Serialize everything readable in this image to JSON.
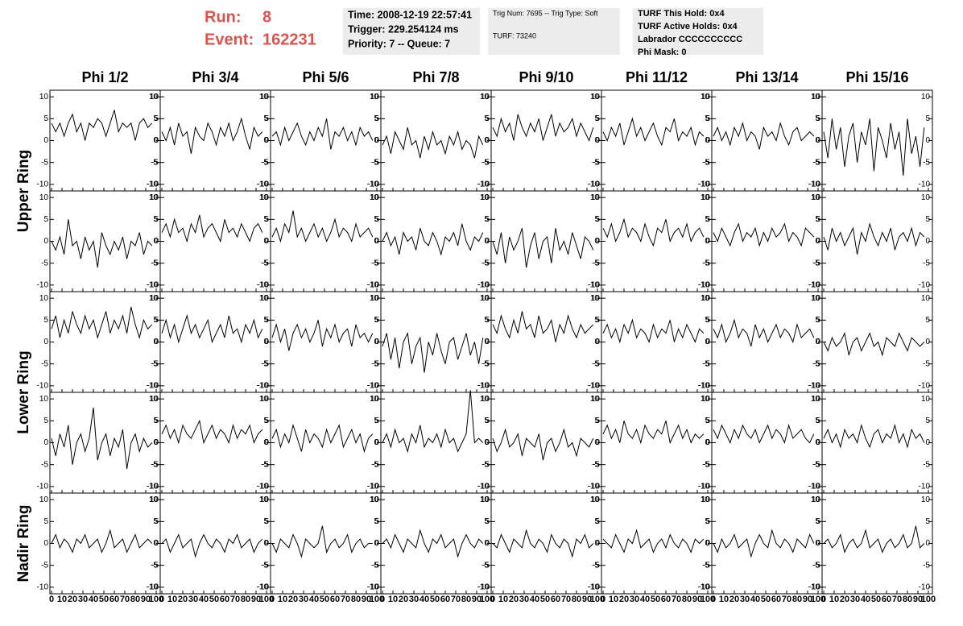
{
  "header": {
    "run": {
      "label": "Run:",
      "value": 8
    },
    "event": {
      "label": "Event:",
      "value": 162231
    },
    "box1": [
      "Time: 2008-12-19 22:57:41",
      "Trigger: 229.254124 ms",
      "Priority: 7 -- Queue: 7"
    ],
    "box2": [
      "Trig Num: 7695 -- Trig Type: Soft",
      "TURF: 73240"
    ],
    "box3": [
      "TURF This Hold: 0x4",
      "TURF Active Holds: 0x4",
      "Labrador CCCCCCCCCC",
      "Phi Mask: 0"
    ]
  },
  "chart_data": {
    "type": "line",
    "color": "#000000",
    "columns": [
      "Phi 1/2",
      "Phi 3/4",
      "Phi 5/6",
      "Phi 7/8",
      "Phi 9/10",
      "Phi 11/12",
      "Phi 13/14",
      "Phi 15/16"
    ],
    "rows": [
      "Upper Ring",
      "Lower Ring",
      "Nadir Ring"
    ],
    "x": [
      0,
      4,
      8,
      12,
      16,
      20,
      24,
      28,
      32,
      36,
      40,
      44,
      48,
      52,
      56,
      60,
      64,
      68,
      72,
      76,
      80,
      84,
      88,
      92,
      96
    ],
    "xlim": [
      0,
      100
    ],
    "xticks": [
      0,
      10,
      20,
      30,
      40,
      50,
      60,
      70,
      80,
      90,
      100
    ],
    "ylim": [
      -11.5,
      11.5
    ],
    "yticks": [
      -10,
      -5,
      0,
      5,
      10
    ],
    "panels": [
      [
        4,
        2,
        4,
        1,
        4,
        6,
        2,
        4,
        0,
        4,
        3,
        5,
        4,
        1,
        4,
        7,
        2,
        4,
        3,
        4,
        0,
        4,
        5,
        3,
        4
      ],
      [
        2,
        0,
        3,
        -1,
        4,
        1,
        2,
        -3,
        3,
        1,
        0,
        4,
        2,
        -1,
        3,
        1,
        4,
        0,
        2,
        5,
        1,
        -2,
        3,
        1,
        2
      ],
      [
        1,
        2,
        -1,
        3,
        0,
        2,
        4,
        1,
        -1,
        2,
        0,
        3,
        1,
        5,
        -2,
        2,
        1,
        3,
        0,
        2,
        -1,
        3,
        1,
        2,
        0
      ],
      [
        -1,
        1,
        -3,
        2,
        0,
        -2,
        3,
        -1,
        0,
        -4,
        1,
        -2,
        2,
        -1,
        0,
        -3,
        1,
        -1,
        2,
        -2,
        0,
        -1,
        -4,
        1,
        -1
      ],
      [
        3,
        1,
        5,
        2,
        4,
        0,
        6,
        3,
        1,
        4,
        2,
        5,
        0,
        3,
        6,
        1,
        4,
        2,
        3,
        5,
        1,
        4,
        2,
        0,
        3
      ],
      [
        2,
        0,
        3,
        1,
        4,
        -1,
        2,
        5,
        1,
        3,
        0,
        2,
        4,
        1,
        -1,
        3,
        2,
        5,
        0,
        2,
        1,
        3,
        -1,
        2,
        1
      ],
      [
        1,
        3,
        0,
        2,
        -1,
        3,
        1,
        4,
        0,
        2,
        1,
        -2,
        3,
        1,
        2,
        0,
        4,
        1,
        -1,
        2,
        3,
        0,
        1,
        2,
        1
      ],
      [
        2,
        -4,
        5,
        -2,
        3,
        -6,
        1,
        4,
        -5,
        2,
        -1,
        5,
        -7,
        3,
        0,
        -4,
        4,
        -2,
        2,
        -8,
        5,
        -3,
        1,
        -6,
        3
      ],
      [
        0,
        -2,
        1,
        -3,
        5,
        -1,
        0,
        -4,
        1,
        -2,
        0,
        -6,
        2,
        -1,
        -3,
        0,
        -2,
        1,
        -4,
        0,
        -1,
        2,
        -3,
        0,
        -1
      ],
      [
        2,
        4,
        1,
        5,
        2,
        3,
        0,
        4,
        2,
        6,
        1,
        3,
        4,
        2,
        0,
        5,
        2,
        3,
        1,
        4,
        2,
        0,
        3,
        4,
        2
      ],
      [
        1,
        3,
        0,
        4,
        2,
        7,
        1,
        3,
        0,
        2,
        4,
        1,
        3,
        0,
        2,
        5,
        1,
        3,
        2,
        0,
        4,
        1,
        2,
        3,
        1
      ],
      [
        0,
        2,
        -1,
        1,
        -3,
        2,
        0,
        1,
        -2,
        3,
        0,
        -1,
        2,
        0,
        -3,
        1,
        0,
        2,
        -1,
        4,
        0,
        -2,
        1,
        0,
        2
      ],
      [
        0,
        -3,
        2,
        -5,
        1,
        -2,
        0,
        3,
        -6,
        -1,
        2,
        -4,
        0,
        1,
        -5,
        3,
        -2,
        0,
        -3,
        2,
        -1,
        -4,
        1,
        0,
        -2
      ],
      [
        3,
        1,
        4,
        0,
        2,
        5,
        1,
        3,
        2,
        0,
        4,
        1,
        -1,
        3,
        2,
        5,
        0,
        2,
        3,
        1,
        4,
        0,
        2,
        3,
        1
      ],
      [
        2,
        0,
        3,
        1,
        -1,
        2,
        4,
        0,
        2,
        1,
        3,
        -1,
        2,
        0,
        3,
        1,
        2,
        4,
        0,
        2,
        1,
        -1,
        3,
        2,
        1
      ],
      [
        1,
        -2,
        3,
        0,
        2,
        -1,
        1,
        3,
        -3,
        2,
        0,
        4,
        1,
        -1,
        2,
        0,
        3,
        -2,
        1,
        2,
        0,
        3,
        -1,
        2,
        1
      ],
      [
        3,
        6,
        1,
        5,
        2,
        7,
        4,
        2,
        6,
        3,
        5,
        1,
        4,
        7,
        2,
        5,
        3,
        6,
        2,
        8,
        4,
        1,
        5,
        3,
        4
      ],
      [
        2,
        5,
        1,
        4,
        0,
        3,
        6,
        2,
        4,
        1,
        3,
        5,
        0,
        2,
        4,
        1,
        6,
        2,
        3,
        0,
        4,
        2,
        5,
        1,
        3
      ],
      [
        1,
        4,
        0,
        3,
        -2,
        2,
        4,
        1,
        3,
        0,
        2,
        5,
        -1,
        3,
        1,
        4,
        0,
        2,
        3,
        -1,
        4,
        1,
        2,
        0,
        2
      ],
      [
        -1,
        2,
        -4,
        1,
        -6,
        0,
        2,
        -5,
        -1,
        1,
        -7,
        0,
        -3,
        2,
        -2,
        -5,
        0,
        1,
        -4,
        -1,
        2,
        -3,
        0,
        -5,
        1
      ],
      [
        4,
        2,
        6,
        3,
        1,
        5,
        2,
        7,
        3,
        4,
        1,
        6,
        2,
        3,
        5,
        0,
        4,
        2,
        6,
        3,
        1,
        4,
        2,
        3,
        4
      ],
      [
        2,
        4,
        1,
        3,
        0,
        4,
        2,
        5,
        1,
        3,
        2,
        0,
        4,
        1,
        3,
        2,
        5,
        0,
        3,
        1,
        4,
        2,
        0,
        3,
        2
      ],
      [
        3,
        1,
        4,
        0,
        2,
        5,
        1,
        3,
        2,
        -1,
        4,
        1,
        3,
        0,
        2,
        4,
        1,
        3,
        2,
        0,
        4,
        1,
        2,
        3,
        1
      ],
      [
        0,
        -2,
        1,
        -1,
        0,
        2,
        -3,
        0,
        1,
        -2,
        0,
        2,
        -1,
        0,
        -3,
        1,
        0,
        -1,
        2,
        0,
        -2,
        1,
        0,
        -1,
        0
      ],
      [
        1,
        -3,
        2,
        -1,
        4,
        -5,
        0,
        2,
        -2,
        1,
        8,
        -4,
        0,
        2,
        -3,
        1,
        -1,
        3,
        -6,
        0,
        2,
        -2,
        1,
        -1,
        0
      ],
      [
        2,
        4,
        1,
        3,
        0,
        4,
        2,
        1,
        3,
        5,
        0,
        2,
        4,
        1,
        3,
        2,
        0,
        4,
        1,
        3,
        2,
        4,
        0,
        2,
        3
      ],
      [
        1,
        3,
        -1,
        2,
        0,
        4,
        1,
        -2,
        3,
        0,
        2,
        1,
        -1,
        3,
        0,
        2,
        4,
        -1,
        1,
        3,
        0,
        2,
        -2,
        1,
        2
      ],
      [
        0,
        2,
        -1,
        3,
        0,
        1,
        -2,
        2,
        0,
        4,
        -1,
        1,
        0,
        2,
        -1,
        3,
        0,
        1,
        -2,
        0,
        2,
        12,
        0,
        1,
        0
      ],
      [
        1,
        -2,
        0,
        3,
        -1,
        0,
        2,
        -3,
        1,
        0,
        -1,
        2,
        -4,
        0,
        1,
        -2,
        0,
        3,
        -1,
        0,
        -3,
        1,
        0,
        -1,
        1
      ],
      [
        2,
        4,
        1,
        3,
        0,
        5,
        2,
        1,
        3,
        0,
        4,
        2,
        1,
        3,
        2,
        5,
        0,
        2,
        4,
        1,
        3,
        0,
        2,
        1,
        2
      ],
      [
        3,
        1,
        4,
        2,
        0,
        3,
        1,
        4,
        2,
        1,
        3,
        0,
        2,
        4,
        1,
        3,
        2,
        0,
        4,
        1,
        2,
        3,
        1,
        0,
        2
      ],
      [
        1,
        3,
        0,
        2,
        -1,
        3,
        1,
        2,
        0,
        4,
        1,
        -1,
        2,
        3,
        0,
        2,
        1,
        4,
        0,
        2,
        -1,
        3,
        1,
        2,
        0
      ],
      [
        0,
        2,
        -1,
        1,
        0,
        -2,
        1,
        0,
        2,
        -1,
        0,
        1,
        -2,
        0,
        3,
        -1,
        0,
        1,
        -2,
        0,
        2,
        -1,
        0,
        1,
        0
      ],
      [
        0,
        1,
        -2,
        0,
        2,
        -1,
        0,
        1,
        -3,
        0,
        2,
        0,
        -1,
        1,
        0,
        -2,
        1,
        0,
        2,
        -1,
        0,
        1,
        -2,
        0,
        1
      ],
      [
        0,
        -2,
        1,
        0,
        -1,
        2,
        0,
        -3,
        1,
        0,
        -1,
        0,
        4,
        -2,
        0,
        1,
        -1,
        0,
        2,
        -2,
        0,
        1,
        -1,
        0,
        0
      ],
      [
        0,
        1,
        -1,
        2,
        0,
        -2,
        1,
        0,
        -1,
        3,
        0,
        -2,
        1,
        0,
        2,
        -1,
        0,
        1,
        -3,
        0,
        2,
        0,
        -1,
        1,
        0
      ],
      [
        0,
        -1,
        2,
        0,
        -2,
        1,
        0,
        -1,
        3,
        0,
        -1,
        1,
        0,
        -2,
        2,
        0,
        -1,
        1,
        0,
        -3,
        1,
        0,
        2,
        -1,
        0
      ],
      [
        1,
        0,
        -1,
        2,
        0,
        -2,
        1,
        0,
        3,
        -1,
        0,
        1,
        -2,
        0,
        1,
        -1,
        2,
        0,
        -1,
        1,
        0,
        -2,
        1,
        0,
        1
      ],
      [
        0,
        -2,
        1,
        -1,
        0,
        2,
        -1,
        0,
        1,
        -3,
        0,
        2,
        0,
        -1,
        3,
        0,
        -1,
        1,
        0,
        -2,
        1,
        0,
        -1,
        2,
        0
      ],
      [
        0,
        1,
        -1,
        0,
        2,
        -2,
        0,
        1,
        -1,
        0,
        3,
        -1,
        0,
        1,
        -2,
        0,
        1,
        -1,
        0,
        2,
        -1,
        0,
        4,
        -1,
        0
      ]
    ]
  }
}
